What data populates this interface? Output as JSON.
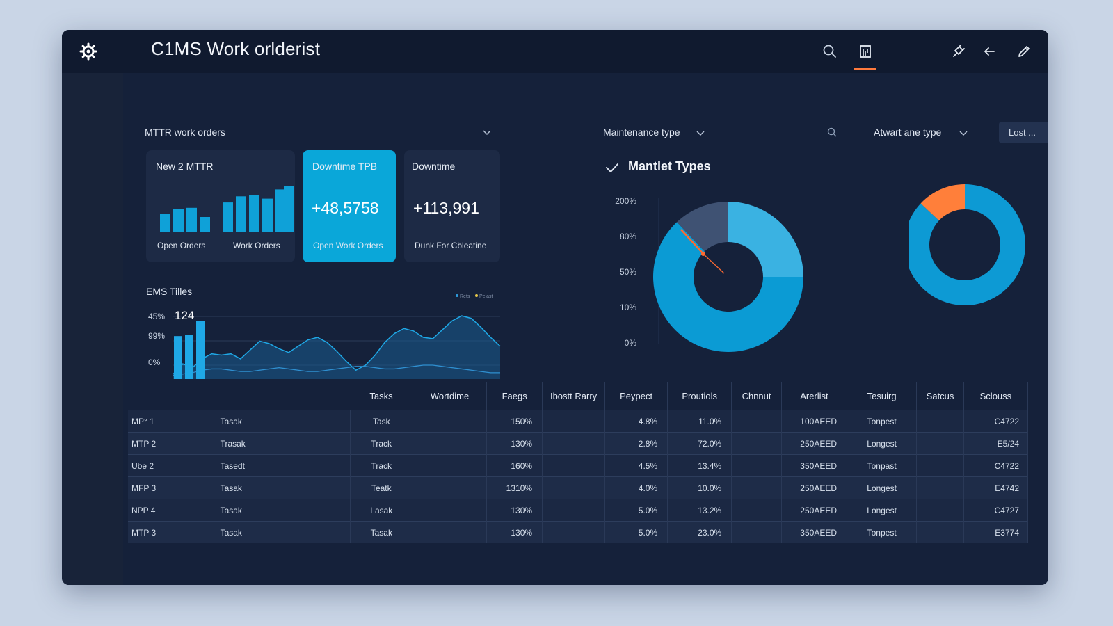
{
  "app": {
    "title": "C1MS Work orlderist",
    "logo_icon": "gear-icon",
    "toolbar_icons": [
      "search-icon",
      "report-icon",
      "pin-icon",
      "back-arrow-icon",
      "edit-pencil-icon"
    ],
    "accent": "#ff7a3d"
  },
  "filters": {
    "mttr_label": "MTTR work orders",
    "maintenance_type_label": "Maintenance type",
    "award_type_label": "Atwart ane type",
    "last_select": "Lost ..."
  },
  "cards": [
    {
      "title": "New 2 MTTR",
      "footers": [
        "Open Orders",
        "Work Orders"
      ],
      "bar_values": [
        2.4,
        3.0,
        3.2,
        2.0,
        3.9,
        4.7,
        4.9,
        4.4,
        5.6,
        6.0
      ],
      "color": "#0fa1d8"
    },
    {
      "title": "Downtime TPB",
      "value": "+48,5758",
      "footer": "Open Work Orders",
      "color": "#0aa7d9"
    },
    {
      "title": "Downtime",
      "value": "+113,991",
      "footer": "Dunk For Cbleatine"
    }
  ],
  "ems": {
    "label": "EMS Tilles",
    "value": "124",
    "legend": [
      "Rets",
      "Pelast"
    ],
    "chart_data": {
      "type": "area",
      "y_tick_labels": [
        "45%",
        "99%",
        "0%"
      ],
      "bars": [
        3.4,
        3.5,
        4.6
      ],
      "series": [
        {
          "values": [
            0.4,
            1.2,
            0.9,
            1.6,
            2.0,
            1.9,
            2.0,
            1.6,
            2.3,
            3.0,
            2.8,
            2.4,
            2.1,
            2.6,
            3.1,
            3.3,
            2.9,
            2.2,
            1.4,
            0.7,
            1.1,
            1.9,
            2.9,
            3.6,
            4.0,
            3.8,
            3.3,
            3.2,
            3.9,
            4.6,
            5.0,
            4.8,
            4.1,
            3.3,
            2.6
          ]
        },
        {
          "values": [
            0.3,
            0.4,
            0.5,
            0.7,
            0.8,
            0.8,
            0.7,
            0.6,
            0.6,
            0.7,
            0.8,
            0.9,
            0.8,
            0.7,
            0.6,
            0.6,
            0.7,
            0.8,
            0.9,
            1.0,
            1.0,
            0.9,
            0.8,
            0.8,
            0.9,
            1.0,
            1.1,
            1.1,
            1.0,
            0.9,
            0.8,
            0.7,
            0.6,
            0.5,
            0.5
          ]
        }
      ],
      "colors": [
        "#1b86c9",
        "#1fa8e6"
      ]
    }
  },
  "types": {
    "title": "Mantlet Types",
    "chart_data": [
      {
        "type": "pie",
        "y_tick_labels": [
          "200%",
          "80%",
          "50%",
          "10%",
          "0%"
        ],
        "slices": [
          {
            "value": 0.25,
            "color": "#3ab2e2"
          },
          {
            "value": 0.63,
            "color": "#0b9bd4"
          },
          {
            "value": 0.12,
            "color": "#3f5273"
          }
        ],
        "needle_color": "#ff6a30"
      },
      {
        "type": "pie",
        "slices": [
          {
            "value": 0.87,
            "color": "#0d9ad4"
          },
          {
            "value": 0.13,
            "color": "#ff7f3a"
          }
        ]
      }
    ]
  },
  "table": {
    "columns": [
      "",
      "",
      "Tasks",
      "Wortdime",
      "Faegs",
      "Ibostt Rarry",
      "Peypect",
      "Proutiols",
      "Chnnut",
      "Arerlist",
      "Tesuirg",
      "Satcus",
      "Sclouss"
    ],
    "rows": [
      [
        "MP° 1",
        "Tasak",
        "Task",
        "",
        "150%",
        "",
        "4.8%",
        "11.0%",
        "",
        "100AEED",
        "Tonpest",
        "",
        "C4722"
      ],
      [
        "MTP 2",
        "Trasak",
        "Track",
        "",
        "130%",
        "",
        "2.8%",
        "72.0%",
        "",
        "250AEED",
        "Longest",
        "",
        "E5/24"
      ],
      [
        "Ube 2",
        "Tasedt",
        "Track",
        "",
        "160%",
        "",
        "4.5%",
        "13.4%",
        "",
        "350AEED",
        "Tonpast",
        "",
        "C4722"
      ],
      [
        "MFP 3",
        "Tasak",
        "Teatk",
        "",
        "1310%",
        "",
        "4.0%",
        "10.0%",
        "",
        "250AEED",
        "Longest",
        "",
        "E4742"
      ],
      [
        "NPP 4",
        "Tasak",
        "Lasak",
        "",
        "130%",
        "",
        "5.0%",
        "13.2%",
        "",
        "250AEED",
        "Longest",
        "",
        "C4727"
      ],
      [
        "MTP 3",
        "Tasak",
        "Tasak",
        "",
        "130%",
        "",
        "5.0%",
        "23.0%",
        "",
        "350AEED",
        "Tonpest",
        "",
        "E3774"
      ]
    ]
  }
}
